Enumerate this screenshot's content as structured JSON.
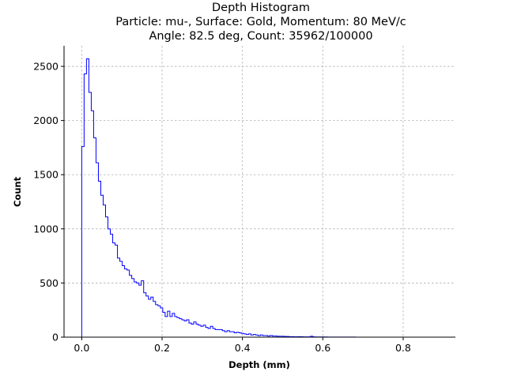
{
  "chart_data": {
    "type": "histogram",
    "title_lines": [
      "Depth Histogram",
      "Particle: mu-, Surface: Gold, Momentum: 80 MeV/c",
      "Angle: 82.5 deg, Count: 35962/100000"
    ],
    "xlabel": "Depth (mm)",
    "ylabel": "Count",
    "xlim": [
      -0.044,
      0.93
    ],
    "ylim": [
      0,
      2690
    ],
    "xticks": [
      0.0,
      0.2,
      0.4,
      0.6,
      0.8
    ],
    "xtick_labels": [
      "0.0",
      "0.2",
      "0.4",
      "0.6",
      "0.8"
    ],
    "yticks": [
      0,
      500,
      1000,
      1500,
      2000,
      2500
    ],
    "ytick_labels": [
      "0",
      "500",
      "1000",
      "1500",
      "2000",
      "2500"
    ],
    "grid": true,
    "line_color": "#0000ff",
    "bin_width": 0.00593,
    "counts": [
      1760,
      2430,
      2570,
      2260,
      2090,
      1840,
      1610,
      1440,
      1310,
      1220,
      1110,
      1000,
      950,
      870,
      850,
      730,
      700,
      660,
      630,
      620,
      570,
      540,
      510,
      500,
      480,
      520,
      410,
      380,
      350,
      370,
      330,
      300,
      290,
      270,
      230,
      190,
      240,
      190,
      220,
      190,
      180,
      170,
      160,
      150,
      160,
      130,
      120,
      140,
      120,
      110,
      100,
      110,
      90,
      80,
      100,
      80,
      70,
      70,
      70,
      60,
      50,
      60,
      50,
      50,
      40,
      45,
      40,
      35,
      30,
      25,
      30,
      20,
      25,
      20,
      15,
      20,
      15,
      15,
      10,
      15,
      10,
      10,
      8,
      8,
      8,
      6,
      6,
      5,
      5,
      4,
      4,
      5,
      4,
      3,
      3,
      3,
      8,
      3,
      2,
      2,
      2,
      2,
      2,
      1,
      1,
      1,
      1,
      1,
      1,
      1,
      1,
      1,
      1,
      1,
      1,
      0,
      0,
      0,
      0,
      0,
      0,
      0,
      0,
      0,
      0,
      0,
      0,
      0,
      0,
      0,
      0,
      0,
      0,
      0,
      0,
      0,
      0,
      0,
      0,
      0,
      0,
      0,
      0,
      0,
      0,
      0,
      0
    ]
  }
}
